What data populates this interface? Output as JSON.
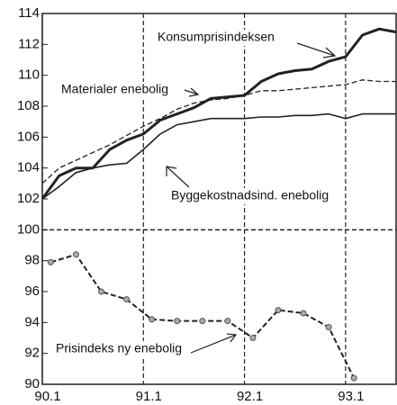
{
  "chart_data": {
    "type": "line",
    "xlim": [
      0,
      42
    ],
    "xticks": [
      {
        "value": 0,
        "label": "90.1"
      },
      {
        "value": 12,
        "label": "91.1"
      },
      {
        "value": 24,
        "label": "92.1"
      },
      {
        "value": 36,
        "label": "93.1"
      }
    ],
    "ylim": [
      90,
      114
    ],
    "yticks": [
      90,
      92,
      94,
      96,
      98,
      100,
      102,
      104,
      106,
      108,
      110,
      112,
      114
    ],
    "grid": true,
    "reference_line": 100,
    "series": [
      {
        "name": "Konsumprisindeksen",
        "color": "#222222",
        "width": 3,
        "dash": false,
        "marker": false,
        "x": [
          0,
          2,
          4,
          6,
          8,
          10,
          12,
          14,
          16,
          18,
          20,
          22,
          24,
          26,
          28,
          30,
          32,
          34,
          36,
          38,
          40,
          42
        ],
        "values": [
          102,
          103.5,
          104,
          104,
          105.2,
          105.8,
          106.2,
          107.1,
          107.5,
          107.9,
          108.5,
          108.6,
          108.7,
          109.6,
          110.1,
          110.3,
          110.4,
          110.9,
          111.2,
          112.6,
          113,
          112.8
        ]
      },
      {
        "name": "Materialer enebolig",
        "color": "#222222",
        "width": 1.3,
        "dash": true,
        "marker": false,
        "x": [
          0,
          2,
          4,
          6,
          8,
          10,
          12,
          14,
          16,
          18,
          20,
          22,
          24,
          26,
          28,
          30,
          32,
          34,
          36,
          38,
          40,
          42
        ],
        "values": [
          103,
          104,
          104.5,
          105,
          105.5,
          106.1,
          106.7,
          107.2,
          107.8,
          108.2,
          108.4,
          108.5,
          108.7,
          109,
          109,
          109.1,
          109.2,
          109.3,
          109.4,
          109.7,
          109.6,
          109.6
        ]
      },
      {
        "name": "Byggekostnadsind. enebolig",
        "color": "#222222",
        "width": 1.6,
        "dash": false,
        "marker": false,
        "x": [
          0,
          2,
          4,
          6,
          8,
          10,
          12,
          14,
          16,
          18,
          20,
          22,
          24,
          26,
          28,
          30,
          32,
          34,
          36,
          38,
          40,
          42
        ],
        "values": [
          102,
          102.8,
          103.7,
          104,
          104.2,
          104.3,
          105.2,
          106.2,
          106.8,
          107,
          107.2,
          107.2,
          107.2,
          107.3,
          107.3,
          107.4,
          107.4,
          107.5,
          107.2,
          107.5,
          107.5,
          107.5
        ]
      },
      {
        "name": "Prisindeks ny enebolig",
        "color": "#222222",
        "width": 2,
        "dash": true,
        "marker": true,
        "x": [
          1,
          4,
          7,
          10,
          13,
          16,
          19,
          22,
          25,
          28,
          31,
          34,
          37
        ],
        "values": [
          97.9,
          98.4,
          96,
          95.5,
          94.2,
          94.1,
          94.1,
          94.1,
          93,
          94.8,
          94.6,
          93.7,
          90.4
        ]
      }
    ]
  }
}
